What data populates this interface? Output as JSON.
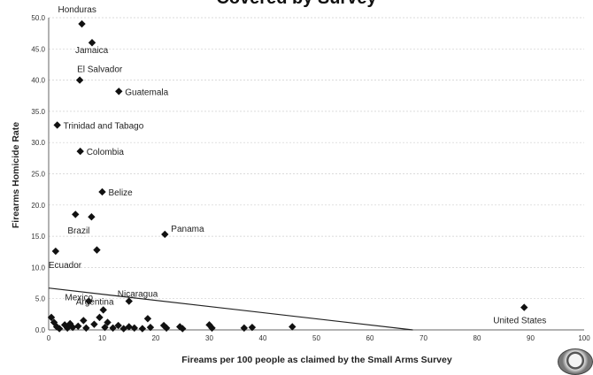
{
  "chart_data": {
    "type": "scatter",
    "title": "Covered by Survey",
    "xlabel": "Fireams per 100 people as claimed by the Small Arms Survey",
    "ylabel": "Firearms Homicide Rate",
    "xlim": [
      0,
      100
    ],
    "ylim": [
      0,
      50
    ],
    "xticks": [
      "0",
      "10",
      "20",
      "30",
      "40",
      "50",
      "60",
      "70",
      "80",
      "90",
      "100"
    ],
    "yticks": [
      "0.0",
      "5.0",
      "10.0",
      "15.0",
      "20.0",
      "25.0",
      "30.0",
      "35.0",
      "40.0",
      "45.0",
      "50.0"
    ],
    "grid": true,
    "marker": "diamond",
    "trendline": {
      "x": [
        0,
        68
      ],
      "y": [
        6.7,
        0.0
      ]
    },
    "labeled_points": [
      {
        "label": "Honduras",
        "x": 6.2,
        "y": 49.0
      },
      {
        "label": "Jamaica",
        "x": 8.1,
        "y": 46.0
      },
      {
        "label": "El Salvador",
        "x": 5.8,
        "y": 40.0
      },
      {
        "label": "Guatemala",
        "x": 13.1,
        "y": 38.2
      },
      {
        "label": "Trinidad and Tabago",
        "x": 1.6,
        "y": 32.8
      },
      {
        "label": "Colombia",
        "x": 5.9,
        "y": 28.6
      },
      {
        "label": "Belize",
        "x": 10.0,
        "y": 22.1
      },
      {
        "label": "Panama",
        "x": 21.7,
        "y": 15.3
      },
      {
        "label": "Brazil",
        "x": 8.0,
        "y": 18.1
      },
      {
        "label": "Ecuador",
        "x": 1.3,
        "y": 12.6
      },
      {
        "label": "Mexico",
        "x": 7.5,
        "y": 4.6
      },
      {
        "label": "Nicaragua",
        "x": 15.0,
        "y": 4.6
      },
      {
        "label": "Argentina",
        "x": 10.2,
        "y": 3.2
      },
      {
        "label": "United States",
        "x": 88.8,
        "y": 3.6
      }
    ],
    "unlabeled_points": [
      {
        "x": 5.0,
        "y": 18.5
      },
      {
        "x": 9.0,
        "y": 12.8
      },
      {
        "x": 0.5,
        "y": 2.0
      },
      {
        "x": 1.0,
        "y": 1.2
      },
      {
        "x": 1.5,
        "y": 0.5
      },
      {
        "x": 2.0,
        "y": 0.2
      },
      {
        "x": 3.0,
        "y": 0.8
      },
      {
        "x": 3.5,
        "y": 0.3
      },
      {
        "x": 4.0,
        "y": 1.0
      },
      {
        "x": 4.5,
        "y": 0.4
      },
      {
        "x": 5.5,
        "y": 0.6
      },
      {
        "x": 6.5,
        "y": 1.5
      },
      {
        "x": 7.0,
        "y": 0.3
      },
      {
        "x": 8.5,
        "y": 0.9
      },
      {
        "x": 9.5,
        "y": 2.0
      },
      {
        "x": 10.5,
        "y": 0.4
      },
      {
        "x": 11.0,
        "y": 1.2
      },
      {
        "x": 12.0,
        "y": 0.3
      },
      {
        "x": 13.0,
        "y": 0.7
      },
      {
        "x": 14.0,
        "y": 0.2
      },
      {
        "x": 15.0,
        "y": 0.5
      },
      {
        "x": 16.0,
        "y": 0.3
      },
      {
        "x": 17.5,
        "y": 0.2
      },
      {
        "x": 18.5,
        "y": 1.8
      },
      {
        "x": 19.0,
        "y": 0.4
      },
      {
        "x": 21.5,
        "y": 0.7
      },
      {
        "x": 22.0,
        "y": 0.3
      },
      {
        "x": 24.5,
        "y": 0.5
      },
      {
        "x": 25.0,
        "y": 0.2
      },
      {
        "x": 30.0,
        "y": 0.8
      },
      {
        "x": 30.5,
        "y": 0.3
      },
      {
        "x": 36.5,
        "y": 0.3
      },
      {
        "x": 38.0,
        "y": 0.4
      },
      {
        "x": 45.5,
        "y": 0.5
      }
    ]
  }
}
